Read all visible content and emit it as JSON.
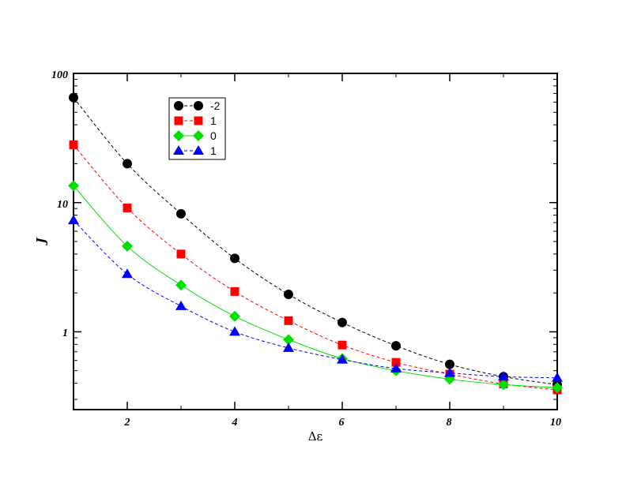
{
  "chart_data": {
    "type": "line",
    "xlabel": "Δε",
    "ylabel": "J",
    "xlim": [
      1,
      10
    ],
    "ylim": [
      0.25,
      100
    ],
    "yscale": "log",
    "xticks": [
      "2",
      "4",
      "6",
      "8",
      "10"
    ],
    "yticks": [
      "1",
      "10",
      "100"
    ],
    "grid": false,
    "legend_position": "top-left",
    "x": [
      1,
      2,
      3,
      4,
      5,
      6,
      7,
      8,
      9,
      10
    ],
    "series": [
      {
        "name": "-2",
        "color": "#000000",
        "marker": "circle",
        "line": "dashed",
        "values": [
          65,
          20,
          8.2,
          3.7,
          1.95,
          1.18,
          0.78,
          0.56,
          0.45,
          0.39
        ]
      },
      {
        "name": "1",
        "color": "#ff0000",
        "marker": "square",
        "line": "dashed",
        "values": [
          28,
          9.1,
          4.0,
          2.05,
          1.22,
          0.79,
          0.58,
          0.47,
          0.395,
          0.355
        ]
      },
      {
        "name": "0",
        "color": "#00e000",
        "marker": "diamond",
        "line": "solid",
        "values": [
          13.5,
          4.6,
          2.3,
          1.32,
          0.87,
          0.62,
          0.5,
          0.43,
          0.39,
          0.37
        ]
      },
      {
        "name": "1",
        "color": "#0000ff",
        "marker": "triangle",
        "line": "dashed",
        "values": [
          7.3,
          2.8,
          1.58,
          1.0,
          0.75,
          0.61,
          0.52,
          0.48,
          0.45,
          0.44
        ]
      }
    ]
  }
}
